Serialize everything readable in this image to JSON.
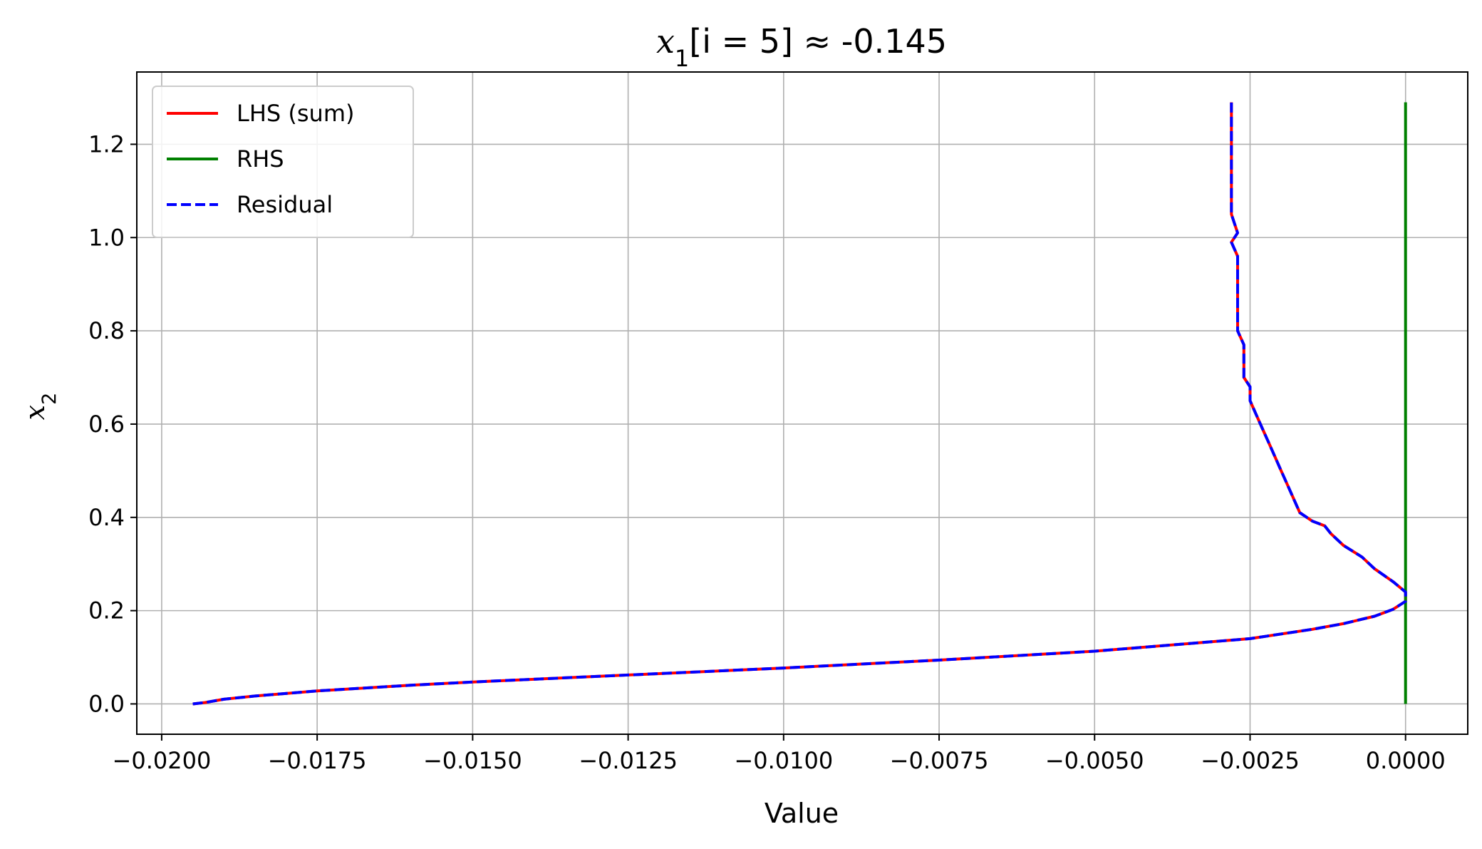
{
  "chart_data": {
    "type": "line",
    "title": {
      "var": "x",
      "sub": "1",
      "text": "[i = 5]  ≈ -0.145"
    },
    "xlabel": "Value",
    "ylabel": {
      "var": "x",
      "sub": "2"
    },
    "xlim": [
      -0.0204,
      0.001
    ],
    "ylim": [
      -0.065,
      1.355
    ],
    "xticks": [
      -0.02,
      -0.0175,
      -0.015,
      -0.0125,
      -0.01,
      -0.0075,
      -0.005,
      -0.0025,
      0.0
    ],
    "xtick_labels": [
      "−0.0200",
      "−0.0175",
      "−0.0150",
      "−0.0125",
      "−0.0100",
      "−0.0075",
      "−0.0050",
      "−0.0025",
      "0.0000"
    ],
    "yticks": [
      0.0,
      0.2,
      0.4,
      0.6,
      0.8,
      1.0,
      1.2
    ],
    "ytick_labels": [
      "0.0",
      "0.2",
      "0.4",
      "0.6",
      "0.8",
      "1.0",
      "1.2"
    ],
    "grid": true,
    "legend_position": "top-left",
    "series": [
      {
        "name": "LHS (sum)",
        "color": "#ff0000",
        "style": "solid",
        "points": [
          [
            -0.0195,
            0.0
          ],
          [
            -0.0193,
            0.003
          ],
          [
            -0.019,
            0.01
          ],
          [
            -0.0185,
            0.017
          ],
          [
            -0.0175,
            0.028
          ],
          [
            -0.016,
            0.04
          ],
          [
            -0.015,
            0.047
          ],
          [
            -0.0125,
            0.062
          ],
          [
            -0.01,
            0.077
          ],
          [
            -0.0075,
            0.094
          ],
          [
            -0.005,
            0.113
          ],
          [
            -0.0025,
            0.14
          ],
          [
            -0.0015,
            0.16
          ],
          [
            -0.001,
            0.172
          ],
          [
            -0.0005,
            0.188
          ],
          [
            -0.0002,
            0.203
          ],
          [
            0.0,
            0.22
          ],
          [
            0.0,
            0.24
          ],
          [
            -0.0002,
            0.262
          ],
          [
            -0.0005,
            0.29
          ],
          [
            -0.0007,
            0.315
          ],
          [
            -0.001,
            0.34
          ],
          [
            -0.0012,
            0.365
          ],
          [
            -0.0013,
            0.382
          ],
          [
            -0.0015,
            0.392
          ],
          [
            -0.0017,
            0.41
          ],
          [
            -0.0018,
            0.44
          ],
          [
            -0.0019,
            0.47
          ],
          [
            -0.002,
            0.5
          ],
          [
            -0.0021,
            0.53
          ],
          [
            -0.0022,
            0.56
          ],
          [
            -0.0023,
            0.59
          ],
          [
            -0.0024,
            0.62
          ],
          [
            -0.0025,
            0.65
          ],
          [
            -0.0025,
            0.68
          ],
          [
            -0.0026,
            0.7
          ],
          [
            -0.0026,
            0.74
          ],
          [
            -0.0026,
            0.77
          ],
          [
            -0.0027,
            0.8
          ],
          [
            -0.0027,
            0.83
          ],
          [
            -0.0027,
            0.86
          ],
          [
            -0.0027,
            0.89
          ],
          [
            -0.0027,
            0.92
          ],
          [
            -0.0027,
            0.96
          ],
          [
            -0.0028,
            0.99
          ],
          [
            -0.0027,
            1.01
          ],
          [
            -0.0028,
            1.05
          ],
          [
            -0.0028,
            1.08
          ],
          [
            -0.0028,
            1.1
          ],
          [
            -0.0028,
            1.15
          ],
          [
            -0.0028,
            1.2
          ],
          [
            -0.0028,
            1.25
          ],
          [
            -0.0028,
            1.29
          ]
        ]
      },
      {
        "name": "RHS",
        "color": "#008000",
        "style": "solid",
        "points": [
          [
            0.0,
            0.0
          ],
          [
            0.0,
            1.29
          ]
        ]
      },
      {
        "name": "Residual",
        "color": "#0000ff",
        "style": "dashed",
        "points": [
          [
            -0.0195,
            0.0
          ],
          [
            -0.0193,
            0.003
          ],
          [
            -0.019,
            0.01
          ],
          [
            -0.0185,
            0.017
          ],
          [
            -0.0175,
            0.028
          ],
          [
            -0.016,
            0.04
          ],
          [
            -0.015,
            0.047
          ],
          [
            -0.0125,
            0.062
          ],
          [
            -0.01,
            0.077
          ],
          [
            -0.0075,
            0.094
          ],
          [
            -0.005,
            0.113
          ],
          [
            -0.0025,
            0.14
          ],
          [
            -0.0015,
            0.16
          ],
          [
            -0.001,
            0.172
          ],
          [
            -0.0005,
            0.188
          ],
          [
            -0.0002,
            0.203
          ],
          [
            0.0,
            0.22
          ],
          [
            0.0,
            0.24
          ],
          [
            -0.0002,
            0.262
          ],
          [
            -0.0005,
            0.29
          ],
          [
            -0.0007,
            0.315
          ],
          [
            -0.001,
            0.34
          ],
          [
            -0.0012,
            0.365
          ],
          [
            -0.0013,
            0.382
          ],
          [
            -0.0015,
            0.392
          ],
          [
            -0.0017,
            0.41
          ],
          [
            -0.0018,
            0.44
          ],
          [
            -0.0019,
            0.47
          ],
          [
            -0.002,
            0.5
          ],
          [
            -0.0021,
            0.53
          ],
          [
            -0.0022,
            0.56
          ],
          [
            -0.0023,
            0.59
          ],
          [
            -0.0024,
            0.62
          ],
          [
            -0.0025,
            0.65
          ],
          [
            -0.0025,
            0.68
          ],
          [
            -0.0026,
            0.7
          ],
          [
            -0.0026,
            0.74
          ],
          [
            -0.0026,
            0.77
          ],
          [
            -0.0027,
            0.8
          ],
          [
            -0.0027,
            0.83
          ],
          [
            -0.0027,
            0.86
          ],
          [
            -0.0027,
            0.89
          ],
          [
            -0.0027,
            0.92
          ],
          [
            -0.0027,
            0.96
          ],
          [
            -0.0028,
            0.99
          ],
          [
            -0.0027,
            1.01
          ],
          [
            -0.0028,
            1.05
          ],
          [
            -0.0028,
            1.08
          ],
          [
            -0.0028,
            1.1
          ],
          [
            -0.0028,
            1.15
          ],
          [
            -0.0028,
            1.2
          ],
          [
            -0.0028,
            1.25
          ],
          [
            -0.0028,
            1.29
          ]
        ]
      }
    ]
  }
}
